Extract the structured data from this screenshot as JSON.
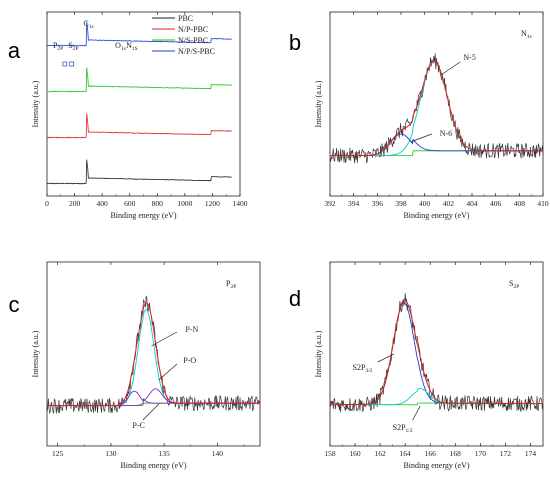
{
  "chart_data": [
    {
      "panel": "a",
      "type": "line",
      "xlabel": "Binding energy (eV)",
      "ylabel": "Intensity (a.u.)",
      "xlim": [
        0,
        1400
      ],
      "xticks": [
        0,
        200,
        400,
        600,
        800,
        1000,
        1200,
        1400
      ],
      "legend": {
        "placement": "top-right"
      },
      "series": [
        {
          "name": "PBC",
          "color": "#222222",
          "offset": 0
        },
        {
          "name": "N/P-PBC",
          "color": "#e0201c",
          "offset": 1
        },
        {
          "name": "N/S-PBC",
          "color": "#17c617",
          "offset": 2
        },
        {
          "name": "N/P/S-PBC",
          "color": "#1f3fd6",
          "offset": 3
        }
      ],
      "annotations": [
        {
          "base": "P",
          "sub": "2P",
          "x": 80
        },
        {
          "base": "S",
          "sub": "2P",
          "x": 190
        },
        {
          "base": "C",
          "sub": "1s",
          "x": 300
        },
        {
          "base": "O",
          "sub": "1s",
          "x": 530
        },
        {
          "base": "N",
          "sub": "1S",
          "x": 610
        }
      ]
    },
    {
      "panel": "b",
      "type": "line",
      "title_base": "N",
      "title_sub": "1s",
      "xlabel": "Binding energy (eV)",
      "ylabel": "Intensity (a.u.)",
      "xlim": [
        392,
        410
      ],
      "xticks": [
        392,
        394,
        396,
        398,
        400,
        402,
        404,
        406,
        408,
        410
      ],
      "peaks": [
        {
          "label": "N-5",
          "center": 400.8,
          "height": 0.75,
          "width": 1.1,
          "color": "#00cccc"
        },
        {
          "label": "N-6",
          "center": 398.0,
          "height": 0.18,
          "width": 0.9,
          "color": "#1f3fd6"
        }
      ]
    },
    {
      "panel": "c",
      "type": "line",
      "title_base": "P",
      "title_sub": "2P",
      "xlabel": "Binding energy (eV)",
      "ylabel": "Intensity (a.u.)",
      "xlim": [
        124,
        144
      ],
      "xticks": [
        125,
        130,
        135,
        140
      ],
      "peaks": [
        {
          "label": "P-N",
          "center": 133.3,
          "height": 0.78,
          "width": 0.75,
          "color": "#00cccc"
        },
        {
          "label": "P-O",
          "center": 134.2,
          "height": 0.12,
          "width": 0.6,
          "color": "#7a2fd0"
        },
        {
          "label": "P-C",
          "center": 132.2,
          "height": 0.12,
          "width": 0.55,
          "color": "#7a2fd0"
        }
      ]
    },
    {
      "panel": "d",
      "type": "line",
      "title_base": "S",
      "title_sub": "2P",
      "xlabel": "Binding energy (eV)",
      "ylabel": "Intensity (a.u.)",
      "xlim": [
        158,
        175
      ],
      "xticks": [
        158,
        160,
        162,
        164,
        166,
        168,
        170,
        172,
        174
      ],
      "peaks": [
        {
          "label_base": "S2P",
          "label_sub": "3/2",
          "center": 163.9,
          "height": 0.85,
          "width": 0.85,
          "color": "#1f3fd6"
        },
        {
          "label_base": "S2P",
          "label_sub": "1/2",
          "center": 165.2,
          "height": 0.12,
          "width": 0.7,
          "color": "#00cccc"
        }
      ]
    }
  ]
}
